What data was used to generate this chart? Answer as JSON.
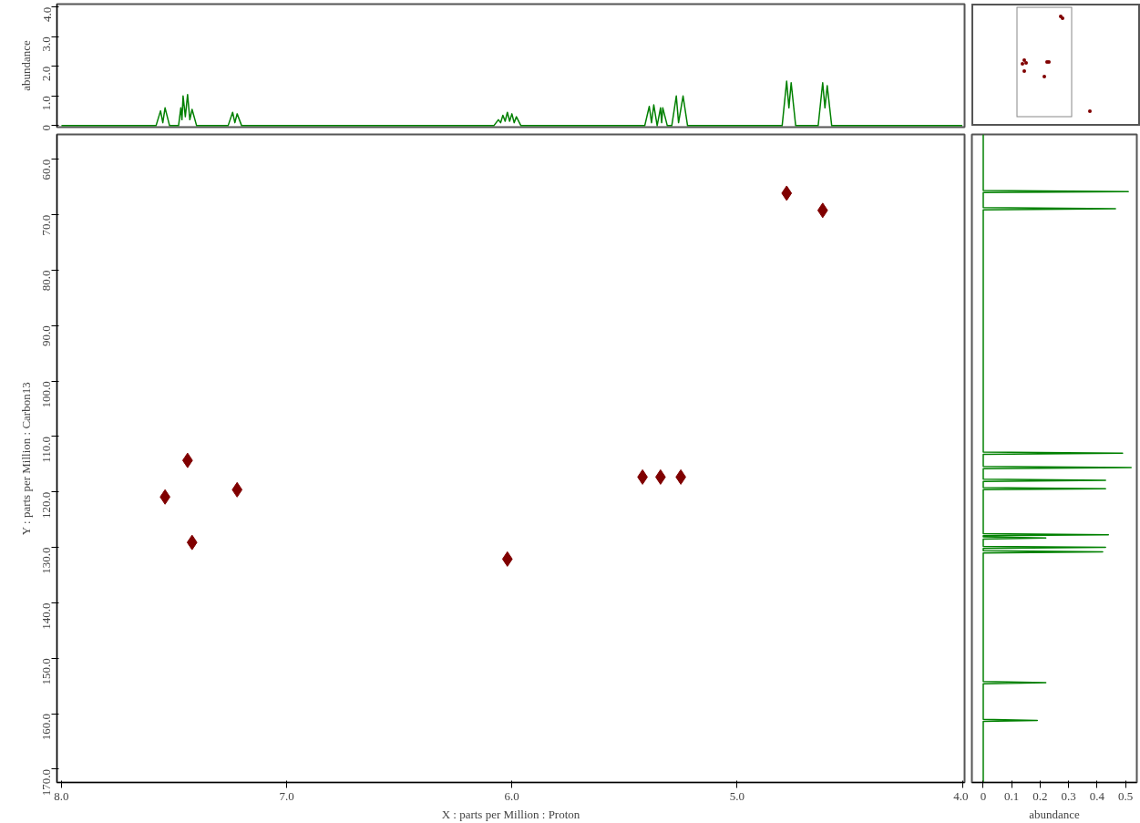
{
  "chart_data": [
    {
      "type": "line",
      "ylabel": "abundance",
      "xlim": [
        8.02,
        3.99
      ],
      "ylim": [
        -0.05,
        4.1
      ],
      "yticks": [
        0,
        {
          "value": 1,
          "label": "1.0"
        },
        {
          "value": 2,
          "label": "2.0"
        },
        {
          "value": 3,
          "label": "3.0"
        },
        {
          "value": 4,
          "label": "4.0"
        }
      ],
      "tick_labels": "y",
      "marker": "none",
      "line_style": "solid",
      "series": [
        {
          "color": "#008000",
          "x": [
            8.0,
            7.58,
            7.56,
            7.55,
            7.54,
            7.52,
            7.48,
            7.47,
            7.465,
            7.46,
            7.45,
            7.44,
            7.43,
            7.42,
            7.4,
            7.26,
            7.24,
            7.23,
            7.22,
            7.2,
            6.08,
            6.06,
            6.05,
            6.04,
            6.03,
            6.02,
            6.01,
            6.0,
            5.99,
            5.98,
            5.96,
            5.41,
            5.39,
            5.38,
            5.37,
            5.355,
            5.34,
            5.335,
            5.33,
            5.31,
            5.29,
            5.27,
            5.26,
            5.24,
            5.22,
            4.8,
            4.78,
            4.77,
            4.76,
            4.74,
            4.64,
            4.62,
            4.61,
            4.6,
            4.58,
            4.0
          ],
          "values": [
            0,
            0,
            0.5,
            0.1,
            0.6,
            0,
            0,
            0.6,
            0.2,
            1.0,
            0.3,
            1.05,
            0.2,
            0.55,
            0,
            0,
            0.45,
            0.1,
            0.4,
            0,
            0,
            0.2,
            0.1,
            0.35,
            0.15,
            0.45,
            0.15,
            0.4,
            0.1,
            0.3,
            0,
            0,
            0.65,
            0.1,
            0.7,
            0,
            0.6,
            0.1,
            0.6,
            0,
            0,
            1.0,
            0.1,
            1.0,
            0,
            0,
            1.5,
            0.6,
            1.45,
            0,
            0,
            1.45,
            0.6,
            1.35,
            0,
            0
          ]
        }
      ]
    },
    {
      "type": "scatter",
      "xlabel": "X : parts per Million : Proton",
      "ylabel": "Y : parts per Million : Carbon13",
      "xlim": [
        8.02,
        3.99
      ],
      "ylim": [
        172.4,
        55.5
      ],
      "xticks": [
        {
          "value": 8,
          "label": "8.0"
        },
        {
          "value": 7,
          "label": "7.0"
        },
        {
          "value": 6,
          "label": "6.0"
        },
        {
          "value": 5,
          "label": "5.0"
        },
        {
          "value": 4,
          "label": "4.0"
        }
      ],
      "yticks": [
        {
          "value": 60,
          "label": "60.0"
        },
        {
          "value": 70,
          "label": "70.0"
        },
        {
          "value": 80,
          "label": "80.0"
        },
        {
          "value": 90,
          "label": "90.0"
        },
        {
          "value": 100,
          "label": "100.0"
        },
        {
          "value": 110,
          "label": "110.0"
        },
        {
          "value": 120,
          "label": "120.0"
        },
        {
          "value": 130,
          "label": "130.0"
        },
        {
          "value": 140,
          "label": "140.0"
        },
        {
          "value": 150,
          "label": "150.0"
        },
        {
          "value": 160,
          "label": "160.0"
        },
        {
          "value": 170,
          "label": "170.0"
        }
      ],
      "marker": "diamond",
      "series": [
        {
          "color": "#800000",
          "x": [
            4.78,
            4.62,
            7.44,
            7.54,
            7.22,
            7.42,
            6.02,
            5.42,
            5.34,
            5.25
          ],
          "values": [
            66.1,
            69.2,
            114.3,
            120.9,
            119.6,
            129.1,
            132.1,
            117.3,
            117.3,
            117.3
          ]
        }
      ]
    },
    {
      "type": "line",
      "orientation": "horizontal",
      "xlabel": "abundance",
      "xlim": [
        -0.04,
        0.54
      ],
      "ylim": [
        172.4,
        55.5
      ],
      "xticks": [
        0,
        0.1,
        0.2,
        0.3,
        0.4,
        0.5
      ],
      "tick_labels": "x",
      "marker": "none",
      "line_style": "solid",
      "series": [
        {
          "color": "#008000",
          "x": [
            55.5,
            65.6,
            65.8,
            66.0,
            68.7,
            68.9,
            69.1,
            112.8,
            113.0,
            113.2,
            115.4,
            115.6,
            115.8,
            117.7,
            117.9,
            118.1,
            119.2,
            119.4,
            119.6,
            127.5,
            127.7,
            127.9,
            128.1,
            128.3,
            128.5,
            129.8,
            130.0,
            130.2,
            130.6,
            130.8,
            131.0,
            154.2,
            154.4,
            154.6,
            161.0,
            161.2,
            161.4,
            172.4
          ],
          "values": [
            0,
            0,
            0.51,
            0,
            0,
            0.465,
            0,
            0,
            0.49,
            0,
            0,
            0.52,
            0,
            0,
            0.43,
            0,
            0,
            0.43,
            0,
            0,
            0.44,
            0,
            0,
            0.22,
            0,
            0,
            0.43,
            0,
            0,
            0.42,
            0,
            0,
            0.22,
            0,
            0,
            0.19,
            0,
            0
          ]
        }
      ]
    }
  ]
}
